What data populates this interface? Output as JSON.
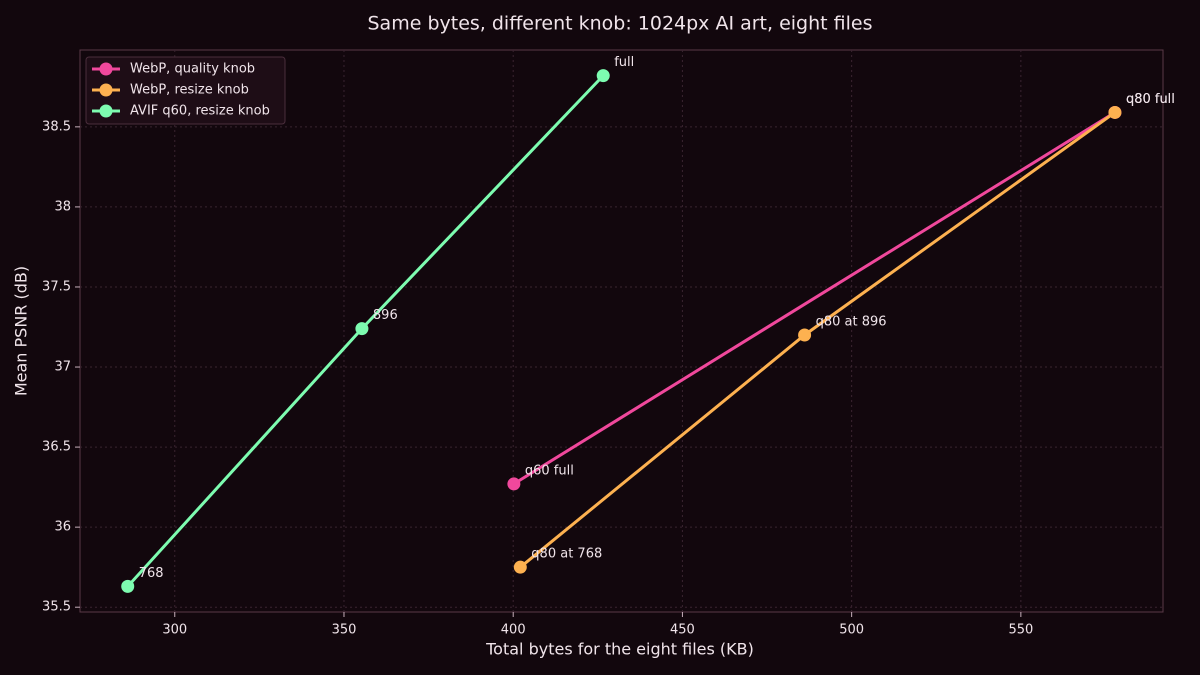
{
  "chart_data": {
    "type": "line",
    "title": "Same bytes, different knob: 1024px AI art, eight files",
    "x_label": "Total bytes for the eight files (KB)",
    "y_label": "Mean PSNR (dB)",
    "xlim": [
      272,
      592
    ],
    "ylim": [
      35.47,
      38.98
    ],
    "xticks": [
      300,
      350,
      400,
      450,
      500,
      550
    ],
    "yticks": [
      35.5,
      36.0,
      36.5,
      37.0,
      37.5,
      38.0,
      38.5
    ],
    "grid": true,
    "legend": "upper left",
    "series": [
      {
        "name": "WebP, quality knob",
        "color": "#f0489c",
        "x": [
          400.2,
          577.8
        ],
        "values": [
          36.27,
          38.59
        ],
        "point_labels": [
          "q60 full",
          "q80 full"
        ]
      },
      {
        "name": "WebP, resize knob",
        "color": "#fdb150",
        "x": [
          402.1,
          486.1,
          577.8
        ],
        "values": [
          35.75,
          37.2,
          38.59
        ],
        "point_labels": [
          "q80 at 768",
          "q80 at 896",
          "q80 full"
        ]
      },
      {
        "name": "AVIF q60, resize knob",
        "color": "#7dfcb0",
        "x": [
          286.1,
          355.3,
          426.6
        ],
        "values": [
          35.63,
          37.24,
          38.82
        ],
        "point_labels": [
          "768",
          "896",
          "full"
        ]
      }
    ]
  }
}
